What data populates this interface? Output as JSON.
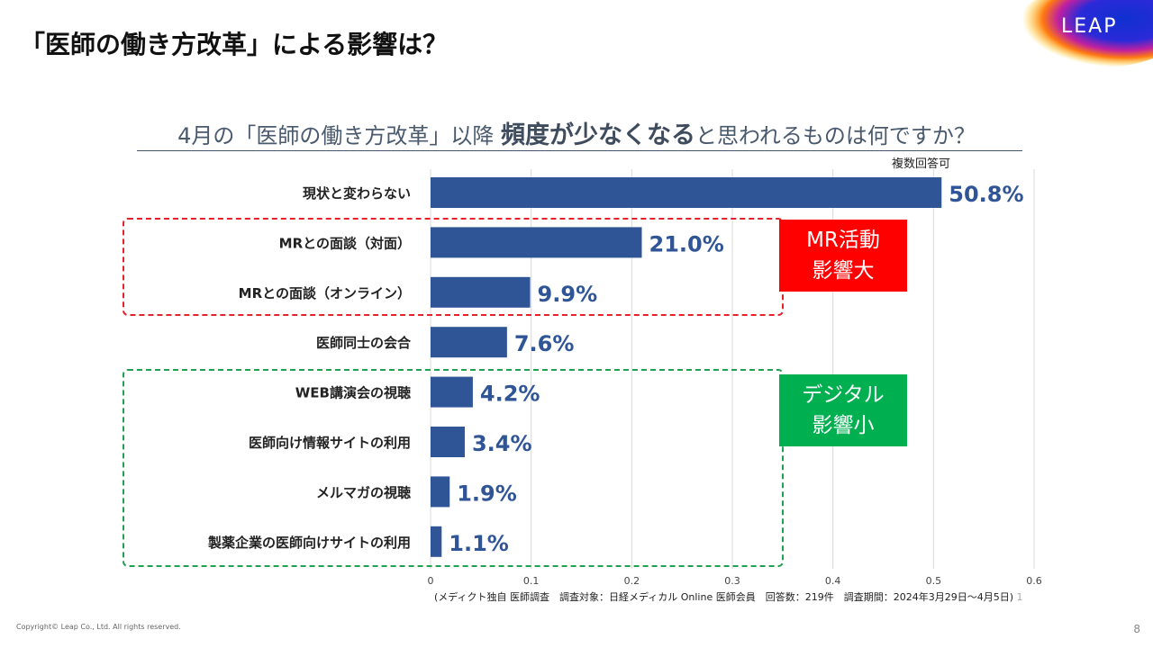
{
  "title": "「医師の働き方改革」による影響は？",
  "logo": {
    "text": "LEAP"
  },
  "subtitle": {
    "pre": "4月の「医師の働き方改革」以降 ",
    "bold": "頻度が少なくなる",
    "post": "と思われるものは何ですか？"
  },
  "multi_answer": "複数回答可",
  "chart_data": {
    "type": "bar",
    "orientation": "horizontal",
    "categories": [
      "現状と変わらない",
      "MRとの面談（対面）",
      "MRとの面談（オンライン）",
      "医師同士の会合",
      "WEB講演会の視聴",
      "医師向け情報サイトの利用",
      "メルマガの視聴",
      "製薬企業の医師向けサイトの利用"
    ],
    "values": [
      0.508,
      0.21,
      0.099,
      0.076,
      0.042,
      0.034,
      0.019,
      0.011
    ],
    "data_labels": [
      "50.8%",
      "21.0%",
      "9.9%",
      "7.6%",
      "4.2%",
      "3.4%",
      "1.9%",
      "1.1%"
    ],
    "xlim": [
      0,
      0.6
    ],
    "xticks": [
      "0",
      "0.1",
      "0.2",
      "0.3",
      "0.4",
      "0.5",
      "0.6"
    ],
    "grid": true,
    "bar_color": "#2f5597"
  },
  "groups": [
    {
      "label_line1": "MR活動",
      "label_line2": "影響大",
      "color": "#ff0000",
      "border": "#e8202a"
    },
    {
      "label_line1": "デジタル",
      "label_line2": "影響小",
      "color": "#00b050",
      "border": "#20a050"
    }
  ],
  "note": "(メディクト独自 医師調査　調査対象：日経メディカル Online 医師会員　回答数：219件　調査期間：2024年3月29日～4月5日)",
  "note_mark": "1",
  "copyright": "Copyright© Leap Co., Ltd.  All rights reserved.",
  "page_number": "8"
}
